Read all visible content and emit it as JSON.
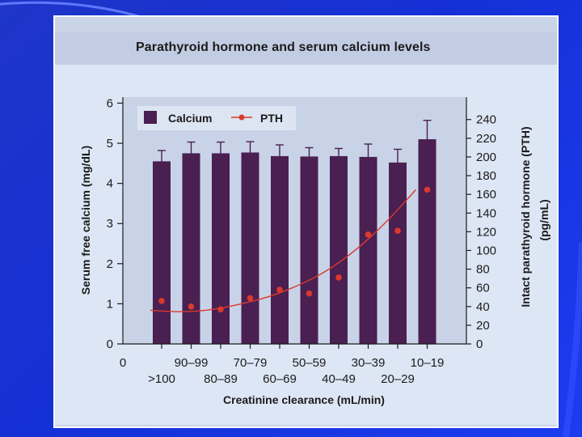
{
  "chart_data": {
    "type": "bar",
    "title": "Parathyroid hormone and serum calcium levels",
    "xlabel": "Creatinine clearance (mL/min)",
    "ylabel": "Serum free calcium (mg/dL)",
    "y2label": "Intact parathyroid hormone (PTH)",
    "y2label_unit": "(pg/mL)",
    "x_zero_label": "0",
    "categories": [
      ">100",
      "90–99",
      "80–89",
      "70–79",
      "60–69",
      "50–59",
      "40–49",
      "30–39",
      "20–29",
      "10–19"
    ],
    "series": [
      {
        "name": "Calcium",
        "kind": "bar",
        "axis": "left",
        "color": "#4a1f52",
        "values": [
          4.55,
          4.75,
          4.75,
          4.77,
          4.68,
          4.67,
          4.68,
          4.66,
          4.52,
          5.1
        ],
        "errors": [
          0.27,
          0.28,
          0.28,
          0.27,
          0.28,
          0.22,
          0.19,
          0.32,
          0.33,
          0.47
        ]
      },
      {
        "name": "PTH",
        "kind": "line-points",
        "axis": "right",
        "color": "#d93a2b",
        "values": [
          46,
          40,
          37,
          49,
          58,
          54,
          71,
          117,
          121,
          165
        ],
        "trend": [
          36,
          34,
          36,
          42,
          50,
          62,
          78,
          101,
          130,
          165
        ]
      }
    ],
    "ylim": [
      0,
      6
    ],
    "yticks": [
      0,
      1,
      2,
      3,
      4,
      5,
      6
    ],
    "y2lim": [
      0,
      260
    ],
    "y2ticks": [
      0,
      20,
      40,
      60,
      80,
      100,
      120,
      140,
      160,
      180,
      200,
      220,
      240
    ],
    "grid": false,
    "legend": "top-left"
  }
}
